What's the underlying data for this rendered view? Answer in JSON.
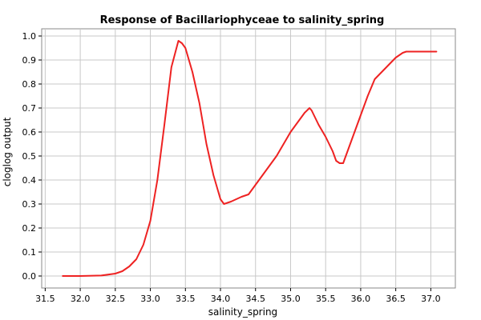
{
  "chart_data": {
    "type": "line",
    "title": "Response of Bacillariophyceae to salinity_spring",
    "xlabel": "salinity_spring",
    "ylabel": "cloglog output",
    "xlim": [
      31.45,
      37.35
    ],
    "ylim": [
      -0.05,
      1.03
    ],
    "x_ticks": [
      31.5,
      32.0,
      32.5,
      33.0,
      33.5,
      34.0,
      34.5,
      35.0,
      35.5,
      36.0,
      36.5,
      37.0
    ],
    "x_tick_labels": [
      "31.5",
      "32.0",
      "32.5",
      "33.0",
      "33.5",
      "34.0",
      "34.5",
      "35.0",
      "35.5",
      "36.0",
      "36.5",
      "37.0"
    ],
    "y_ticks": [
      0.0,
      0.1,
      0.2,
      0.3,
      0.4,
      0.5,
      0.6,
      0.7,
      0.8,
      0.9,
      1.0
    ],
    "y_tick_labels": [
      "0.0",
      "0.1",
      "0.2",
      "0.3",
      "0.4",
      "0.5",
      "0.6",
      "0.7",
      "0.8",
      "0.9",
      "1.0"
    ],
    "grid": true,
    "line_color": "#ee2222",
    "series": [
      {
        "x": [
          31.75,
          32.0,
          32.3,
          32.5,
          32.6,
          32.7,
          32.8,
          32.9,
          33.0,
          33.1,
          33.2,
          33.3,
          33.4,
          33.45,
          33.5,
          33.6,
          33.7,
          33.8,
          33.9,
          34.0,
          34.05,
          34.15,
          34.3,
          34.4,
          34.5,
          34.6,
          34.7,
          34.8,
          34.9,
          35.0,
          35.1,
          35.2,
          35.27,
          35.3,
          35.4,
          35.5,
          35.6,
          35.65,
          35.7,
          35.75,
          35.8,
          35.9,
          36.0,
          36.1,
          36.2,
          36.3,
          36.4,
          36.5,
          36.6,
          36.65,
          36.8,
          37.0,
          37.08
        ],
        "y": [
          0.0,
          0.0,
          0.002,
          0.01,
          0.02,
          0.04,
          0.07,
          0.13,
          0.23,
          0.4,
          0.63,
          0.87,
          0.98,
          0.97,
          0.95,
          0.85,
          0.72,
          0.55,
          0.42,
          0.32,
          0.3,
          0.31,
          0.33,
          0.34,
          0.38,
          0.42,
          0.46,
          0.5,
          0.55,
          0.6,
          0.64,
          0.68,
          0.7,
          0.69,
          0.63,
          0.58,
          0.52,
          0.48,
          0.47,
          0.47,
          0.51,
          0.59,
          0.67,
          0.75,
          0.82,
          0.85,
          0.88,
          0.91,
          0.93,
          0.935,
          0.935,
          0.935,
          0.935
        ]
      }
    ]
  }
}
